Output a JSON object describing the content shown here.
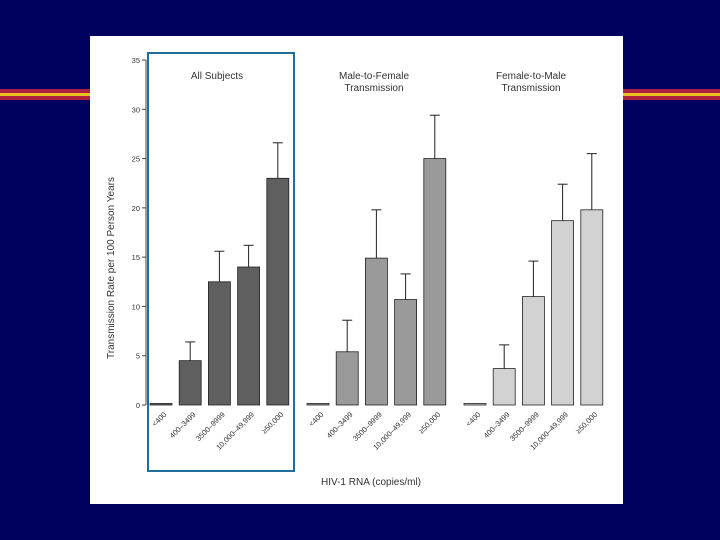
{
  "slide": {
    "background": "#00005e",
    "stripe_colors": [
      "#b02040",
      "#e8c020",
      "#b02040"
    ]
  },
  "chart_data": {
    "type": "bar",
    "title": "",
    "xlabel": "HIV-1 RNA (copies/ml)",
    "ylabel": "Transmission Rate per 100 Person Years",
    "ylim": [
      0,
      35
    ],
    "yticks": [
      0,
      5,
      10,
      15,
      20,
      25,
      30,
      35
    ],
    "categories": [
      "<400",
      "400–3499",
      "3500–9999",
      "10,000–49,999",
      "≥50,000"
    ],
    "highlight_group": "All Subjects",
    "series": [
      {
        "name": "All Subjects",
        "color": "#5f5f5f",
        "values": [
          0,
          4.5,
          12.5,
          14.0,
          23.0
        ],
        "error_upper": [
          0,
          6.4,
          15.6,
          16.2,
          26.6
        ]
      },
      {
        "name": "Male-to-Female Transmission",
        "color": "#9a9a9a",
        "values": [
          0,
          5.4,
          14.9,
          10.7,
          25.0
        ],
        "error_upper": [
          0,
          8.6,
          19.8,
          13.3,
          29.4
        ]
      },
      {
        "name": "Female-to-Male Transmission",
        "color": "#d2d2d2",
        "values": [
          0,
          3.7,
          11.0,
          18.7,
          19.8
        ],
        "error_upper": [
          0,
          6.1,
          14.6,
          22.4,
          25.5
        ]
      }
    ],
    "group_titles": [
      [
        "All Subjects"
      ],
      [
        "Male-to-Female",
        "Transmission"
      ],
      [
        "Female-to-Male",
        "Transmission"
      ]
    ],
    "highlight_color": "#1f6f9a"
  }
}
